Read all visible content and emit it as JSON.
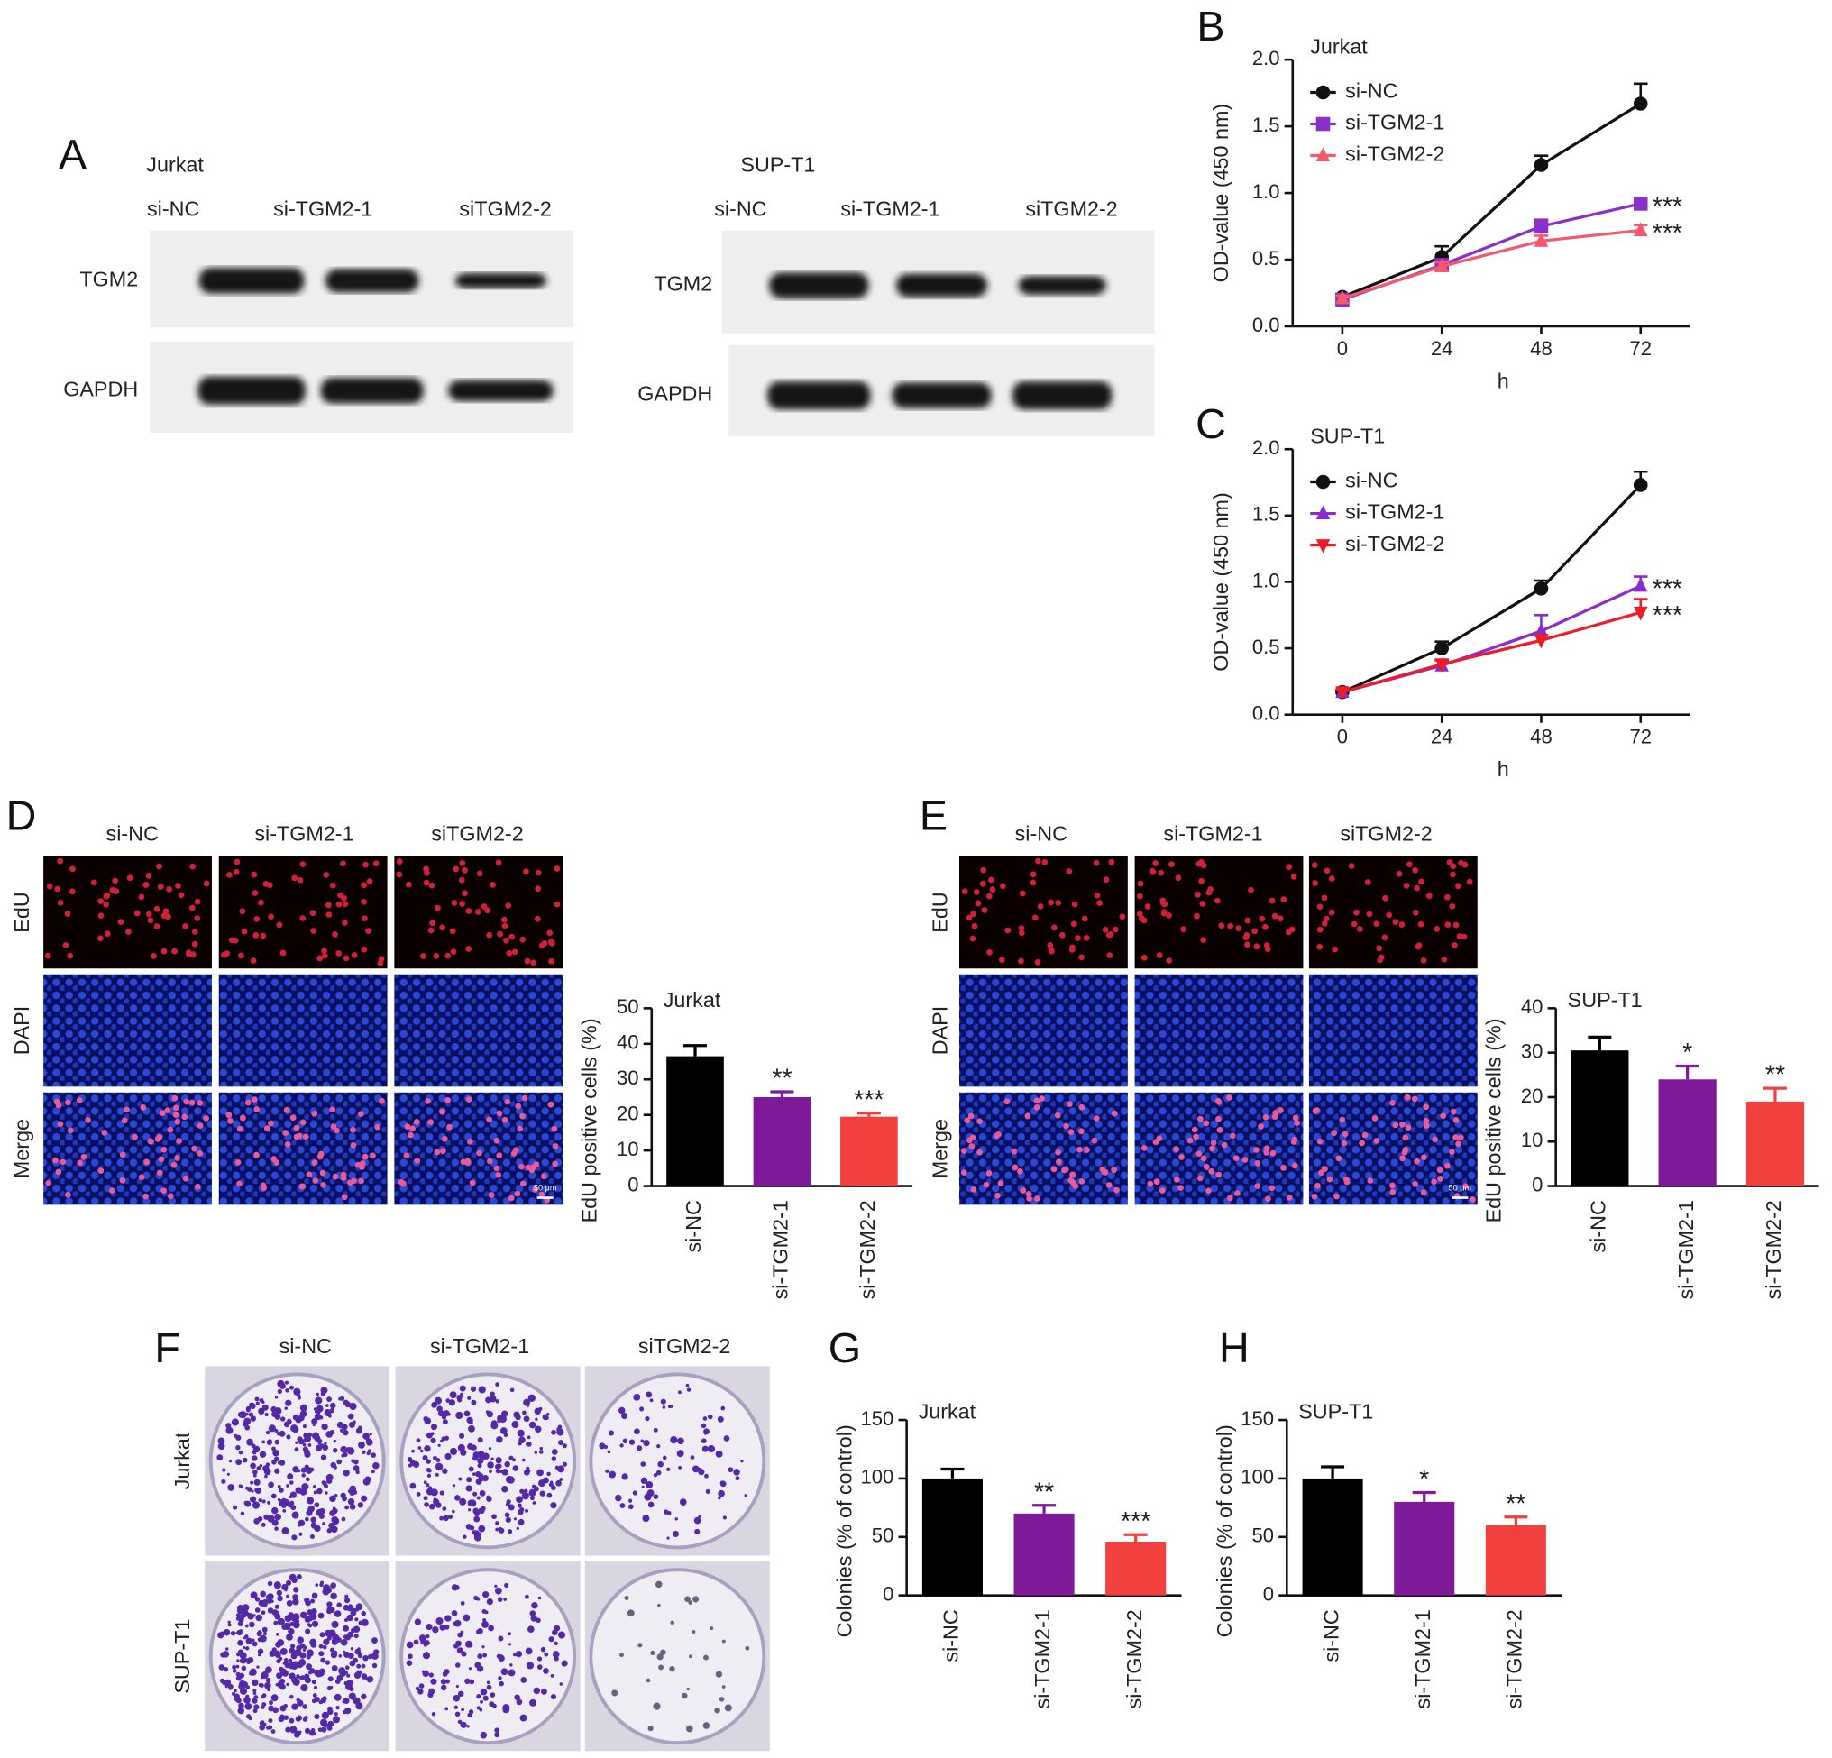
{
  "panel_labels": [
    "A",
    "B",
    "C",
    "D",
    "E",
    "F",
    "G",
    "H"
  ],
  "blots": [
    {
      "cell": "Jurkat",
      "lanes": [
        "si-NC",
        "si-TGM2-1",
        "siTGM2-2"
      ],
      "rows": [
        "TGM2",
        "GAPDH"
      ]
    },
    {
      "cell": "SUP-T1",
      "lanes": [
        "si-NC",
        "si-TGM2-1",
        "siTGM2-2"
      ],
      "rows": [
        "TGM2",
        "GAPDH"
      ]
    }
  ],
  "edu_panels": [
    {
      "columns": [
        "si-NC",
        "si-TGM2-1",
        "siTGM2-2"
      ],
      "rows": [
        "EdU",
        "DAPI",
        "Merge"
      ],
      "scale_bar": "50 μm"
    },
    {
      "columns": [
        "si-NC",
        "si-TGM2-1",
        "siTGM2-2"
      ],
      "rows": [
        "EdU",
        "DAPI",
        "Merge"
      ],
      "scale_bar": "50 μm"
    }
  ],
  "colony_panel": {
    "columns": [
      "si-NC",
      "si-TGM2-1",
      "siTGM2-2"
    ],
    "rows": [
      "Jurkat",
      "SUP-T1"
    ]
  },
  "chart_data": [
    {
      "type": "line",
      "title": "Jurkat",
      "x_label": "h",
      "y_label": "OD-value (450 nm)",
      "x": [
        0,
        24,
        48,
        72
      ],
      "xlim": [
        -12,
        84
      ],
      "xticks": [
        0,
        24,
        48,
        72
      ],
      "ylim": [
        0,
        2
      ],
      "yticks": [
        {
          "value": 0,
          "label": "0.0"
        },
        {
          "value": 0.5,
          "label": "0.5"
        },
        {
          "value": 1,
          "label": "1.0"
        },
        {
          "value": 1.5,
          "label": "1.5"
        },
        {
          "value": 2,
          "label": "2.0"
        }
      ],
      "legend": "upper left",
      "series": [
        {
          "name": "si-NC",
          "color": "#111111",
          "marker": "circle",
          "values": [
            0.22,
            0.52,
            1.21,
            1.67
          ],
          "errors": [
            0.02,
            0.08,
            0.07,
            0.15
          ]
        },
        {
          "name": "si-TGM2-1",
          "color": "#8b2fc9",
          "marker": "square",
          "values": [
            0.2,
            0.46,
            0.75,
            0.92
          ],
          "errors": [
            0.02,
            0.03,
            0.05,
            0.03
          ],
          "significance": "***"
        },
        {
          "name": "si-TGM2-2",
          "color": "#f5586a",
          "marker": "triangle",
          "values": [
            0.21,
            0.45,
            0.64,
            0.72
          ],
          "errors": [
            0.02,
            0.03,
            0.04,
            0.04
          ],
          "significance": "***"
        }
      ]
    },
    {
      "type": "line",
      "title": "SUP-T1",
      "x_label": "h",
      "y_label": "OD-value (450 nm)",
      "x": [
        0,
        24,
        48,
        72
      ],
      "xlim": [
        -12,
        84
      ],
      "xticks": [
        0,
        24,
        48,
        72
      ],
      "ylim": [
        0,
        2
      ],
      "yticks": [
        {
          "value": 0,
          "label": "0.0"
        },
        {
          "value": 0.5,
          "label": "0.5"
        },
        {
          "value": 1,
          "label": "1.0"
        },
        {
          "value": 1.5,
          "label": "1.5"
        },
        {
          "value": 2,
          "label": "2.0"
        }
      ],
      "legend": "upper left",
      "series": [
        {
          "name": "si-NC",
          "color": "#111111",
          "marker": "circle",
          "values": [
            0.17,
            0.5,
            0.95,
            1.73
          ],
          "errors": [
            0.02,
            0.05,
            0.06,
            0.1
          ]
        },
        {
          "name": "si-TGM2-1",
          "color": "#8a2bd0",
          "marker": "triangle",
          "values": [
            0.17,
            0.37,
            0.63,
            0.97
          ],
          "errors": [
            0.02,
            0.04,
            0.12,
            0.07
          ],
          "significance": "***"
        },
        {
          "name": "si-TGM2-2",
          "color": "#ee1c25",
          "marker": "triangle-down",
          "values": [
            0.17,
            0.38,
            0.56,
            0.77
          ],
          "errors": [
            0.02,
            0.03,
            0.04,
            0.1
          ],
          "significance": "***"
        }
      ]
    },
    {
      "type": "bar",
      "title": "Jurkat",
      "y_label": "EdU positive cells (%)",
      "categories": [
        "si-NC",
        "si-TGM2-1",
        "si-TGM2-2"
      ],
      "values": [
        36.5,
        25,
        19.5
      ],
      "errors": [
        3,
        1.5,
        1
      ],
      "significance": [
        null,
        "**",
        "***"
      ],
      "colors": [
        "#000000",
        "#7e1a9a",
        "#f2403f"
      ],
      "ylim": [
        0,
        50
      ],
      "yticks": [
        0,
        10,
        20,
        30,
        40,
        50
      ]
    },
    {
      "type": "bar",
      "title": "SUP-T1",
      "y_label": "EdU positive cells (%)",
      "categories": [
        "si-NC",
        "si-TGM2-1",
        "si-TGM2-2"
      ],
      "values": [
        30.5,
        24,
        19
      ],
      "errors": [
        3,
        3,
        3
      ],
      "significance": [
        null,
        "*",
        "**"
      ],
      "colors": [
        "#000000",
        "#7e1a9a",
        "#f2403f"
      ],
      "ylim": [
        0,
        40
      ],
      "yticks": [
        0,
        10,
        20,
        30,
        40
      ]
    },
    {
      "type": "bar",
      "title": "Jurkat",
      "y_label": "Colonies (% of control)",
      "categories": [
        "si-NC",
        "si-TGM2-1",
        "si-TGM2-2"
      ],
      "values": [
        100,
        70,
        46
      ],
      "errors": [
        8,
        7,
        6
      ],
      "significance": [
        null,
        "**",
        "***"
      ],
      "colors": [
        "#000000",
        "#7e1a9a",
        "#f2403f"
      ],
      "ylim": [
        0,
        150
      ],
      "yticks": [
        0,
        50,
        100,
        150
      ]
    },
    {
      "type": "bar",
      "title": "SUP-T1",
      "y_label": "Colonies (% of control)",
      "categories": [
        "si-NC",
        "si-TGM2-1",
        "si-TGM2-2"
      ],
      "values": [
        100,
        80,
        60
      ],
      "errors": [
        10,
        8,
        7
      ],
      "significance": [
        null,
        "*",
        "**"
      ],
      "colors": [
        "#000000",
        "#7e1a9a",
        "#f2403f"
      ],
      "ylim": [
        0,
        150
      ],
      "yticks": [
        0,
        50,
        100,
        150
      ]
    }
  ]
}
